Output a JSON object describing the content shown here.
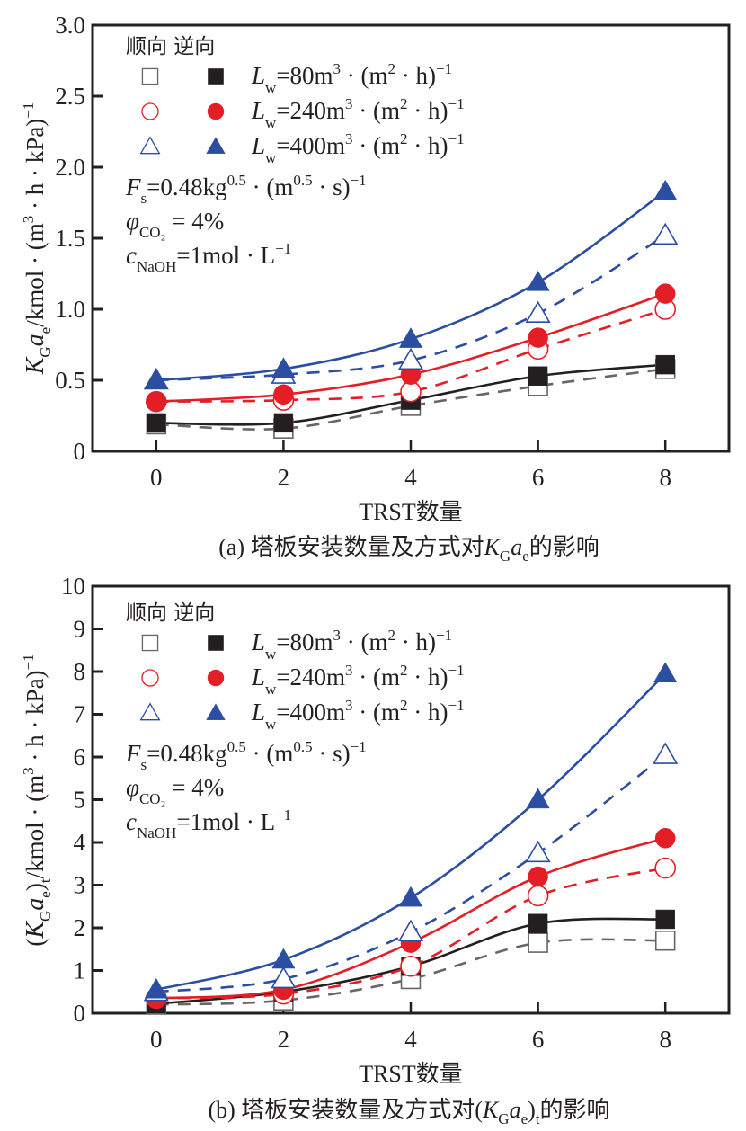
{
  "chart_data": [
    {
      "type": "line",
      "panel": "a",
      "caption": {
        "prefix": "(a) 塔板安装数量及方式对",
        "sym_main": "K",
        "sym_sub1": "G",
        "sym_a": "a",
        "sym_sub2": "e",
        "suffix": "的影响"
      },
      "xlabel": "TRST数量",
      "ylabel": {
        "main": "K",
        "sub": "G",
        "a": "a",
        "sub2": "e",
        "rest": "/kmol · (m",
        "sup3": "3",
        "rest2": " · h · kPa)",
        "supm1": "−1"
      },
      "xlim": [
        -1,
        9
      ],
      "ylim": [
        0,
        3.0
      ],
      "x": [
        0,
        2,
        4,
        6,
        8
      ],
      "xticks": [
        "0",
        "2",
        "4",
        "6",
        "8"
      ],
      "yticks": [
        0,
        0.5,
        1.0,
        1.5,
        2.0,
        2.5,
        3.0
      ],
      "ytick_labels": [
        "0",
        "0.5",
        "1.0",
        "1.5",
        "2.0",
        "2.5",
        "3.0"
      ],
      "series": [
        {
          "name": "顺向 Lw=80",
          "mode": "forward",
          "marker": "square-open",
          "color": "#666666",
          "dash": true,
          "values": [
            0.19,
            0.16,
            0.32,
            0.46,
            0.58
          ]
        },
        {
          "name": "逆向 Lw=80",
          "mode": "reverse",
          "marker": "square-filled",
          "color": "#231f20",
          "dash": false,
          "values": [
            0.2,
            0.2,
            0.36,
            0.53,
            0.61
          ]
        },
        {
          "name": "顺向 Lw=240",
          "mode": "forward",
          "marker": "circle-open",
          "color": "#e41e26",
          "dash": true,
          "values": [
            0.35,
            0.36,
            0.42,
            0.72,
            1.0
          ]
        },
        {
          "name": "逆向 Lw=240",
          "mode": "reverse",
          "marker": "circle-filled",
          "color": "#e41e26",
          "dash": false,
          "values": [
            0.35,
            0.4,
            0.54,
            0.8,
            1.11
          ]
        },
        {
          "name": "顺向 Lw=400",
          "mode": "forward",
          "marker": "triangle-open",
          "color": "#2b4ea2",
          "dash": true,
          "values": [
            0.5,
            0.54,
            0.64,
            0.97,
            1.52
          ]
        },
        {
          "name": "逆向 Lw=400",
          "mode": "reverse",
          "marker": "triangle-filled",
          "color": "#2b4ea2",
          "dash": false,
          "values": [
            0.5,
            0.58,
            0.79,
            1.19,
            1.83
          ]
        }
      ]
    },
    {
      "type": "line",
      "panel": "b",
      "caption": {
        "prefix": "(b) 塔板安装数量及方式对(",
        "sym_main": "K",
        "sym_sub1": "G",
        "sym_a": "a",
        "sym_sub2": "e",
        "close": ")",
        "sym_sub3": "t",
        "suffix": "的影响"
      },
      "xlabel": "TRST数量",
      "ylabel": {
        "open": "(",
        "main": "K",
        "sub": "G",
        "a": "a",
        "sub2": "e",
        "close": ")",
        "sub3": "t",
        "rest": "/kmol · (m",
        "sup3": "3",
        "rest2": " · h · kPa)",
        "supm1": "−1"
      },
      "xlim": [
        -1,
        9
      ],
      "ylim": [
        0,
        10
      ],
      "x": [
        0,
        2,
        4,
        6,
        8
      ],
      "xticks": [
        "0",
        "2",
        "4",
        "6",
        "8"
      ],
      "yticks": [
        0,
        1,
        2,
        3,
        4,
        5,
        6,
        7,
        8,
        9,
        10
      ],
      "ytick_labels": [
        "0",
        "1",
        "2",
        "3",
        "4",
        "5",
        "6",
        "7",
        "8",
        "9",
        "10"
      ],
      "series": [
        {
          "name": "顺向 Lw=80",
          "mode": "forward",
          "marker": "square-open",
          "color": "#666666",
          "dash": true,
          "values": [
            0.2,
            0.3,
            0.8,
            1.65,
            1.7
          ]
        },
        {
          "name": "逆向 Lw=80",
          "mode": "reverse",
          "marker": "square-filled",
          "color": "#231f20",
          "dash": false,
          "values": [
            0.22,
            0.5,
            1.1,
            2.1,
            2.2
          ]
        },
        {
          "name": "顺向 Lw=240",
          "mode": "forward",
          "marker": "circle-open",
          "color": "#e41e26",
          "dash": true,
          "values": [
            0.35,
            0.45,
            1.1,
            2.75,
            3.4
          ]
        },
        {
          "name": "逆向 Lw=240",
          "mode": "reverse",
          "marker": "circle-filled",
          "color": "#e41e26",
          "dash": false,
          "values": [
            0.35,
            0.55,
            1.65,
            3.2,
            4.1
          ]
        },
        {
          "name": "顺向 Lw=400",
          "mode": "forward",
          "marker": "triangle-open",
          "color": "#2b4ea2",
          "dash": true,
          "values": [
            0.5,
            0.8,
            1.9,
            3.75,
            6.05
          ]
        },
        {
          "name": "逆向 Lw=400",
          "mode": "reverse",
          "marker": "triangle-filled",
          "color": "#2b4ea2",
          "dash": false,
          "values": [
            0.55,
            1.25,
            2.7,
            5.0,
            7.95
          ]
        }
      ]
    }
  ],
  "legend": {
    "header": "顺向 逆向",
    "rows": [
      {
        "L": "L",
        "w": "w",
        "eq": "=80m",
        "sup": "3",
        "mid": " · (m",
        "sup2": "2",
        "end": " · h)",
        "supm1": "−1",
        "open_marker": "square-open",
        "filled_marker": "square-filled",
        "color": "#231f20",
        "open_color": "#666666"
      },
      {
        "L": "L",
        "w": "w",
        "eq": "=240m",
        "sup": "3",
        "mid": " · (m",
        "sup2": "2",
        "end": " · h)",
        "supm1": "−1",
        "open_marker": "circle-open",
        "filled_marker": "circle-filled",
        "color": "#e41e26",
        "open_color": "#e41e26"
      },
      {
        "L": "L",
        "w": "w",
        "eq": "=400m",
        "sup": "3",
        "mid": " · (m",
        "sup2": "2",
        "end": " · h)",
        "supm1": "−1",
        "open_marker": "triangle-open",
        "filled_marker": "triangle-filled",
        "color": "#2b4ea2",
        "open_color": "#2b4ea2"
      }
    ],
    "conditions": [
      {
        "main": "F",
        "sub": "s",
        "rest": "=0.48kg",
        "sup": "0.5",
        "rest2": " · (m",
        "sup2": "0.5",
        "rest3": " · s)",
        "supm1": "−1"
      },
      {
        "main": "φ",
        "sub": "CO₂",
        "rest": " = 4%"
      },
      {
        "main": "c",
        "sub": "NaOH",
        "rest": "=1mol · L",
        "supm1": "−1"
      }
    ]
  }
}
